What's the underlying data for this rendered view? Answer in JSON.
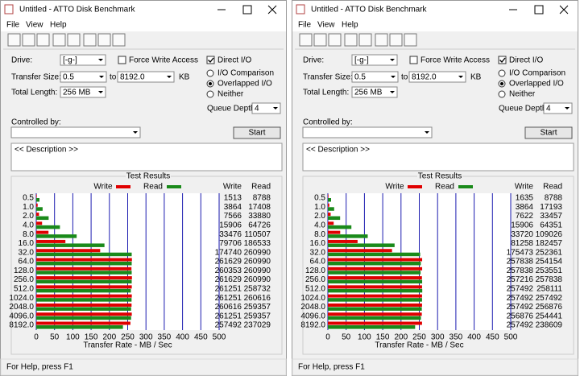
{
  "windows": [
    {
      "title": "Untitled - ATTO Disk Benchmark",
      "menu": [
        "File",
        "View",
        "Help"
      ],
      "drive_label": "Drive:",
      "drive_value": "[-g-]",
      "force_write": "Force Write Access",
      "force_write_checked": false,
      "direct_io": "Direct I/O",
      "direct_io_checked": true,
      "transfer_size_label": "Transfer Size:",
      "transfer_from": "0.5",
      "to": "to",
      "transfer_to": "8192.0",
      "kb": "KB",
      "total_length_label": "Total Length:",
      "total_length": "256 MB",
      "io_options": [
        "I/O Comparison",
        "Overlapped I/O",
        "Neither"
      ],
      "io_selected": 1,
      "queue_depth_label": "Queue Depth:",
      "queue_depth": "4",
      "controlled_by": "Controlled by:",
      "start": "Start",
      "description": "<< Description >>",
      "status": "For Help, press F1"
    },
    {
      "title": "Untitled - ATTO Disk Benchmark",
      "menu": [
        "File",
        "View",
        "Help"
      ],
      "drive_label": "Drive:",
      "drive_value": "[-g-]",
      "force_write": "Force Write Access",
      "force_write_checked": false,
      "direct_io": "Direct I/O",
      "direct_io_checked": true,
      "transfer_size_label": "Transfer Size:",
      "transfer_from": "0.5",
      "to": "to",
      "transfer_to": "8192.0",
      "kb": "KB",
      "total_length_label": "Total Length:",
      "total_length": "256 MB",
      "io_options": [
        "I/O Comparison",
        "Overlapped I/O",
        "Neither"
      ],
      "io_selected": 1,
      "queue_depth_label": "Queue Depth:",
      "queue_depth": "4",
      "controlled_by": "Controlled by:",
      "start": "Start",
      "description": "<< Description >>",
      "status": "For Help, press F1"
    }
  ],
  "chart_data": [
    {
      "type": "bar",
      "title": "Test Results",
      "x_label": "Transfer Rate - MB / Sec",
      "categories": [
        "0.5",
        "1.0",
        "2.0",
        "4.0",
        "8.0",
        "16.0",
        "32.0",
        "64.0",
        "128.0",
        "256.0",
        "512.0",
        "1024.0",
        "2048.0",
        "4096.0",
        "8192.0"
      ],
      "series": [
        {
          "name": "Write",
          "color": "#e00000",
          "values": [
            1.513,
            3.864,
            7.566,
            15.906,
            33.476,
            79.706,
            174.74,
            261.629,
            260.353,
            261.629,
            261.251,
            261.251,
            260.616,
            261.251,
            257.492
          ],
          "value_labels": [
            "1513",
            "3864",
            "7566",
            "15906",
            "33476",
            "79706",
            "174740",
            "261629",
            "260353",
            "261629",
            "261251",
            "261251",
            "260616",
            "261251",
            "257492"
          ]
        },
        {
          "name": "Read",
          "color": "#1a8a1a",
          "values": [
            8.788,
            17.408,
            33.88,
            64.726,
            110.507,
            186.533,
            260.99,
            260.99,
            260.99,
            260.99,
            258.732,
            260.616,
            259.357,
            259.357,
            237.029
          ],
          "value_labels": [
            "8788",
            "17408",
            "33880",
            "64726",
            "110507",
            "186533",
            "260990",
            "260990",
            "260990",
            "260990",
            "258732",
            "260616",
            "259357",
            "259357",
            "237029"
          ]
        }
      ],
      "xlim": [
        0,
        500
      ],
      "xticks": [
        0,
        50,
        100,
        150,
        200,
        250,
        300,
        350,
        400,
        450,
        500
      ],
      "grid": true
    },
    {
      "type": "bar",
      "title": "Test Results",
      "x_label": "Transfer Rate - MB / Sec",
      "categories": [
        "0.5",
        "1.0",
        "2.0",
        "4.0",
        "8.0",
        "16.0",
        "32.0",
        "64.0",
        "128.0",
        "256.0",
        "512.0",
        "1024.0",
        "2048.0",
        "4096.0",
        "8192.0"
      ],
      "series": [
        {
          "name": "Write",
          "color": "#e00000",
          "values": [
            1.635,
            3.864,
            7.622,
            15.906,
            33.72,
            81.258,
            175.473,
            257.838,
            257.838,
            257.216,
            257.492,
            257.492,
            257.492,
            256.876,
            257.492
          ],
          "value_labels": [
            "1635",
            "3864",
            "7622",
            "15906",
            "33720",
            "81258",
            "175473",
            "257838",
            "257838",
            "257216",
            "257492",
            "257492",
            "257492",
            "256876",
            "257492"
          ]
        },
        {
          "name": "Read",
          "color": "#1a8a1a",
          "values": [
            8.788,
            17.193,
            33.457,
            64.351,
            109.026,
            182.457,
            252.361,
            254.154,
            253.551,
            257.838,
            258.111,
            257.492,
            256.876,
            254.441,
            238.609
          ],
          "value_labels": [
            "8788",
            "17193",
            "33457",
            "64351",
            "109026",
            "182457",
            "252361",
            "254154",
            "253551",
            "257838",
            "258111",
            "257492",
            "256876",
            "254441",
            "238609"
          ]
        }
      ],
      "xlim": [
        0,
        500
      ],
      "xticks": [
        0,
        50,
        100,
        150,
        200,
        250,
        300,
        350,
        400,
        450,
        500
      ],
      "grid": true
    }
  ]
}
